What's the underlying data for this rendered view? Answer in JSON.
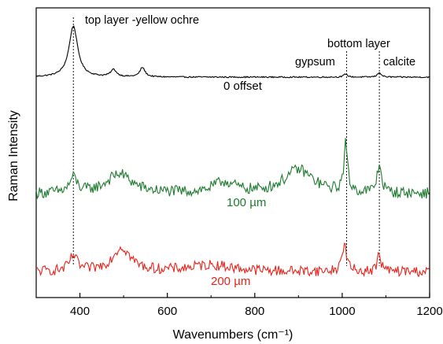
{
  "chart_data": {
    "type": "line",
    "xlabel": "Wavenumbers (cm⁻¹)",
    "ylabel": "Raman Intensity",
    "xlim": [
      300,
      1200
    ],
    "x_ticks": [
      "400",
      "600",
      "800",
      "1000",
      "1200"
    ],
    "grid": false,
    "y_ticks_shown": false,
    "series": [
      {
        "name": "0 offset",
        "color": "#000000",
        "baseline": 0.1,
        "noise": 0.008,
        "peaks": [
          {
            "x": 385,
            "height": 0.65,
            "width": 12
          },
          {
            "x": 477,
            "height": 0.09,
            "width": 8
          },
          {
            "x": 543,
            "height": 0.12,
            "width": 7
          },
          {
            "x": 1008,
            "height": 0.04,
            "width": 5
          },
          {
            "x": 1085,
            "height": 0.06,
            "width": 5
          }
        ]
      },
      {
        "name": "100 µm",
        "color": "#1e7a2e",
        "baseline": 0.55,
        "noise": 0.13,
        "peaks": [
          {
            "x": 385,
            "height": 0.35,
            "width": 10
          },
          {
            "x": 490,
            "height": 0.45,
            "width": 35
          },
          {
            "x": 730,
            "height": 0.25,
            "width": 30
          },
          {
            "x": 900,
            "height": 0.55,
            "width": 40
          },
          {
            "x": 1008,
            "height": 1.1,
            "width": 5
          },
          {
            "x": 1085,
            "height": 0.65,
            "width": 6
          }
        ]
      },
      {
        "name": "200 µm",
        "color": "#e8231b",
        "baseline": 0.2,
        "noise": 0.12,
        "peaks": [
          {
            "x": 385,
            "height": 0.35,
            "width": 10
          },
          {
            "x": 495,
            "height": 0.55,
            "width": 25
          },
          {
            "x": 1005,
            "height": 0.65,
            "width": 6
          },
          {
            "x": 1085,
            "height": 0.4,
            "width": 5
          },
          {
            "x": 700,
            "height": 0.15,
            "width": 60
          }
        ]
      }
    ],
    "annotations": [
      {
        "text": "top layer -yellow ochre"
      },
      {
        "text": "gypsum"
      },
      {
        "text": "bottom layer"
      },
      {
        "text": "calcite"
      }
    ],
    "reference_lines_x": [
      385,
      1010,
      1085
    ]
  }
}
